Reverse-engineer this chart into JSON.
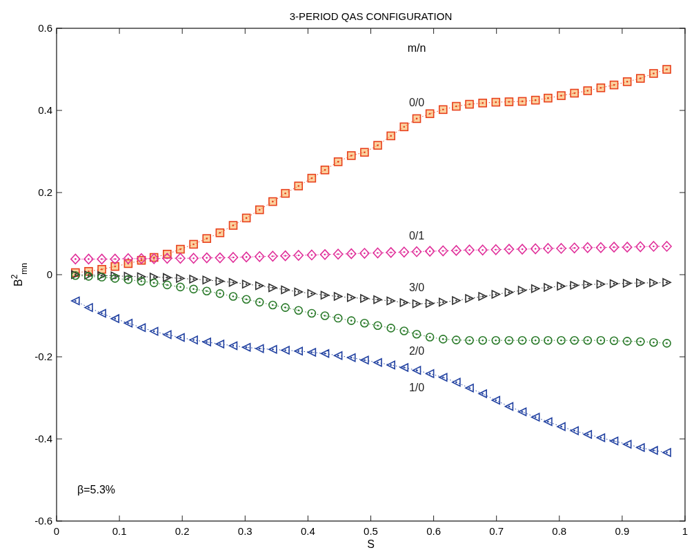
{
  "chart_data": {
    "type": "line",
    "title": "3-PERIOD QAS CONFIGURATION",
    "xlabel": "S",
    "ylabel": "B$^{2}$$_{mn}$",
    "legend_title": "m/n",
    "annotations": [
      "β=5.3%"
    ],
    "x": [
      0.03,
      0.051,
      0.072,
      0.093,
      0.114,
      0.135,
      0.155,
      0.176,
      0.197,
      0.218,
      0.239,
      0.26,
      0.281,
      0.302,
      0.323,
      0.344,
      0.364,
      0.385,
      0.406,
      0.427,
      0.448,
      0.469,
      0.49,
      0.511,
      0.532,
      0.553,
      0.573,
      0.594,
      0.615,
      0.636,
      0.657,
      0.678,
      0.699,
      0.72,
      0.741,
      0.762,
      0.782,
      0.803,
      0.824,
      0.845,
      0.866,
      0.887,
      0.908,
      0.929,
      0.95,
      0.971
    ],
    "series": [
      {
        "name": "0/0",
        "color": "#e8401c",
        "marker": "square",
        "values": [
          0.005,
          0.008,
          0.013,
          0.02,
          0.027,
          0.035,
          0.042,
          0.05,
          0.062,
          0.074,
          0.088,
          0.102,
          0.12,
          0.138,
          0.158,
          0.178,
          0.198,
          0.216,
          0.235,
          0.255,
          0.275,
          0.29,
          0.298,
          0.315,
          0.338,
          0.36,
          0.38,
          0.392,
          0.402,
          0.41,
          0.415,
          0.418,
          0.42,
          0.421,
          0.422,
          0.425,
          0.43,
          0.436,
          0.442,
          0.448,
          0.455,
          0.462,
          0.47,
          0.478,
          0.49,
          0.5
        ]
      },
      {
        "name": "0/1",
        "color": "#e0309a",
        "marker": "diamond",
        "values": [
          0.038,
          0.038,
          0.038,
          0.038,
          0.039,
          0.039,
          0.039,
          0.04,
          0.04,
          0.04,
          0.041,
          0.041,
          0.042,
          0.043,
          0.044,
          0.045,
          0.046,
          0.047,
          0.048,
          0.049,
          0.05,
          0.051,
          0.052,
          0.053,
          0.054,
          0.055,
          0.056,
          0.057,
          0.058,
          0.059,
          0.06,
          0.06,
          0.061,
          0.062,
          0.062,
          0.063,
          0.064,
          0.064,
          0.065,
          0.066,
          0.066,
          0.067,
          0.067,
          0.068,
          0.069,
          0.069
        ]
      },
      {
        "name": "3/0",
        "color": "#303030",
        "marker": "triangle",
        "values": [
          0,
          -0.001,
          -0.002,
          -0.003,
          -0.004,
          -0.005,
          -0.006,
          -0.007,
          -0.009,
          -0.011,
          -0.013,
          -0.016,
          -0.019,
          -0.023,
          -0.027,
          -0.032,
          -0.037,
          -0.042,
          -0.046,
          -0.05,
          -0.053,
          -0.056,
          -0.058,
          -0.061,
          -0.064,
          -0.068,
          -0.071,
          -0.07,
          -0.067,
          -0.063,
          -0.058,
          -0.053,
          -0.048,
          -0.043,
          -0.038,
          -0.034,
          -0.031,
          -0.028,
          -0.026,
          -0.024,
          -0.023,
          -0.022,
          -0.021,
          -0.02,
          -0.02,
          -0.019
        ]
      },
      {
        "name": "2/0",
        "color": "#2a7a2a",
        "marker": "circle",
        "values": [
          -0.002,
          -0.004,
          -0.006,
          -0.009,
          -0.012,
          -0.016,
          -0.02,
          -0.025,
          -0.03,
          -0.035,
          -0.04,
          -0.046,
          -0.053,
          -0.06,
          -0.067,
          -0.074,
          -0.08,
          -0.087,
          -0.094,
          -0.1,
          -0.106,
          -0.112,
          -0.118,
          -0.124,
          -0.13,
          -0.137,
          -0.145,
          -0.152,
          -0.157,
          -0.159,
          -0.16,
          -0.16,
          -0.16,
          -0.16,
          -0.16,
          -0.16,
          -0.16,
          -0.16,
          -0.16,
          -0.16,
          -0.16,
          -0.161,
          -0.162,
          -0.163,
          -0.165,
          -0.167
        ]
      },
      {
        "name": "1/0",
        "color": "#2040a0",
        "marker": "triangle",
        "values": [
          -0.064,
          -0.08,
          -0.094,
          -0.107,
          -0.118,
          -0.129,
          -0.138,
          -0.146,
          -0.153,
          -0.159,
          -0.164,
          -0.169,
          -0.173,
          -0.177,
          -0.18,
          -0.182,
          -0.184,
          -0.186,
          -0.189,
          -0.192,
          -0.197,
          -0.202,
          -0.208,
          -0.214,
          -0.22,
          -0.226,
          -0.233,
          -0.241,
          -0.25,
          -0.262,
          -0.276,
          -0.29,
          -0.306,
          -0.321,
          -0.334,
          -0.347,
          -0.358,
          -0.37,
          -0.38,
          -0.389,
          -0.397,
          -0.405,
          -0.413,
          -0.421,
          -0.428,
          -0.433
        ]
      }
    ],
    "xlim": [
      0,
      1
    ],
    "xticks": [
      0,
      0.1,
      0.2,
      0.3,
      0.4,
      0.5,
      0.6,
      0.7,
      0.8,
      0.9,
      1
    ],
    "ylim": [
      -0.6,
      0.6
    ],
    "yticks": [
      -0.6,
      -0.4,
      -0.2,
      0,
      0.2,
      0.4,
      0.6
    ],
    "grid": false,
    "line_style": "dotted"
  }
}
